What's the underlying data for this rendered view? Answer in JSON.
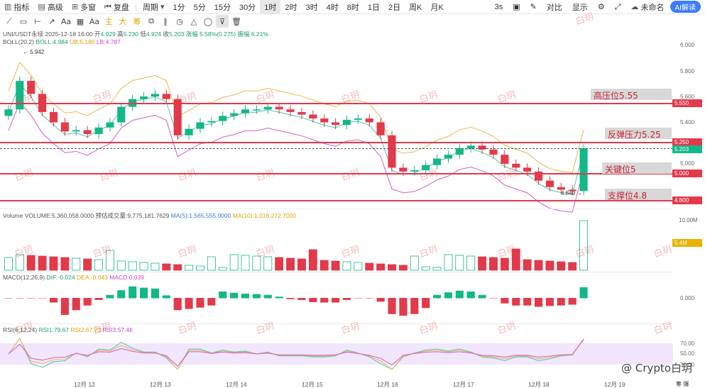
{
  "toolbar": {
    "indicators": "指标",
    "template": "高级",
    "multi": "多窗",
    "replay": "复盘",
    "period": "周期",
    "intervals": [
      "1分",
      "5分",
      "15分",
      "30分",
      "1时",
      "2时",
      "3时",
      "4时",
      "8时",
      "1日",
      "2日",
      "周K",
      "月K"
    ],
    "active_interval": "1时",
    "right": {
      "seconds": "3s",
      "shot_glyph": "▣",
      "edit_glyph": "✎",
      "compare": "对比",
      "display": "显示",
      "settings_glyph": "⚙",
      "expand_glyph": "⤢",
      "cloud": "未命名",
      "ai": "AI解读"
    }
  },
  "drawtools": {
    "glyphs": [
      "⟋",
      "▭",
      "⊢",
      "↗",
      "Aa",
      "▦",
      "Aa"
    ],
    "cn_tools": [
      "主",
      "大",
      "筹"
    ],
    "more_glyphs": [
      "⧉",
      "∥",
      "◷",
      "△",
      "◯",
      "⊽",
      "🗑"
    ]
  },
  "main_info": {
    "symbol": "UNI/USDT永续",
    "datetime": "2025-12-18 16:00",
    "open_label": "开",
    "open": "4.929",
    "high_label": "高",
    "high": "5.230",
    "low_label": "低",
    "low": "4.924",
    "close_label": "收",
    "close": "5.203",
    "change": "涨幅 5.58%(0.275)",
    "amplitude": "振幅 6.21%"
  },
  "boll_info": {
    "name": "BOLL(20,2)",
    "boll": "BOLL:4.984",
    "ub": "UB:5.180",
    "lb": "LB:4.787"
  },
  "volume_info": {
    "name": "Volume",
    "volume": "VOLUME:5,360,058.0000",
    "est": "预估成交量:9,775,181.7629",
    "ma5": "MA(5):1,565,555.0000",
    "ma10": "MA(10):1,016,272.7000"
  },
  "macd_info": {
    "name": "MACD(12,26,9)",
    "dif": "DIF:-0.024",
    "dea": "DEA:-0.043",
    "macd": "MACD:0.039"
  },
  "rsi_info": {
    "name": "RSI(6,12,24)",
    "rsi1": "RSI1:79.67",
    "rsi2": "RSI2:67.73",
    "rsi3": "RSI3:57.46"
  },
  "price_axis": [
    "6.000",
    "5.800",
    "5.600",
    "5.400",
    "5.200",
    "5.000",
    "4.800"
  ],
  "price_tags": {
    "t5550": "5.550",
    "t5250": "5.250",
    "t5203": "5.203",
    "t5000": "5.000",
    "t4800": "4.800"
  },
  "vol_axis": {
    "top": "10.00M",
    "tag": "5.4M"
  },
  "macd_axis": "0.000",
  "rsi_axis": [
    "70.00",
    "50.00",
    "30.00"
  ],
  "annotations": {
    "a1": "高压位5.55",
    "a2": "反弹压力5.25",
    "a3": "关键位5",
    "a4": "支撑位4.8"
  },
  "high_mark": "5.942",
  "low_mark": "4.849",
  "dates": [
    "12月 12",
    "12月 13",
    "12月 14",
    "12月 15",
    "12月 16",
    "12月 17",
    "12月 18",
    "12月 19"
  ],
  "watermark": "白玥",
  "brand": "@ Crypto白玥",
  "corner": "筹 爆",
  "colors": {
    "up": "#12b886",
    "down": "#e23a4a",
    "ub": "#f0b64a",
    "mid": "#4fc4b0",
    "lb": "#d65bc8",
    "line": "#e23a4a"
  },
  "chart_data": {
    "type": "candlestick",
    "price_levels": [
      5.55,
      5.25,
      5.0,
      4.8
    ],
    "candles_close": [
      5.5,
      5.72,
      5.62,
      5.48,
      5.4,
      5.33,
      5.34,
      5.31,
      5.36,
      5.4,
      5.52,
      5.58,
      5.6,
      5.62,
      5.58,
      5.3,
      5.35,
      5.4,
      5.41,
      5.45,
      5.47,
      5.5,
      5.5,
      5.52,
      5.5,
      5.48,
      5.46,
      5.43,
      5.4,
      5.38,
      5.42,
      5.43,
      5.4,
      5.3,
      5.05,
      5.02,
      5.03,
      5.07,
      5.12,
      5.15,
      5.2,
      5.22,
      5.19,
      5.15,
      5.08,
      5.05,
      5.02,
      4.95,
      4.9,
      4.88,
      4.87,
      5.2
    ]
  }
}
